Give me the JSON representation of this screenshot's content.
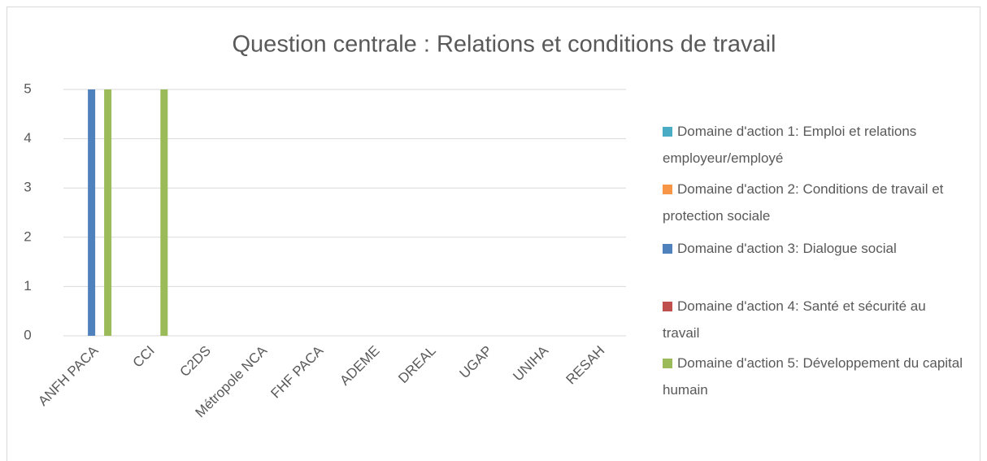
{
  "chart_data": {
    "type": "bar",
    "title": "Question centrale : Relations et conditions de travail",
    "categories": [
      "ANFH PACA",
      "CCI",
      "C2DS",
      "Métropole NCA",
      "FHF PACA",
      "ADEME",
      "DREAL",
      "UGAP",
      "UNIHA",
      "RESAH"
    ],
    "series": [
      {
        "name": "Domaine d'action 1: Emploi et relations employeur/employé",
        "color": "#4bacc6",
        "values": [
          0,
          0,
          0,
          0,
          0,
          0,
          0,
          0,
          0,
          0
        ]
      },
      {
        "name": "Domaine d'action 2: Conditions de travail et protection sociale",
        "color": "#f79646",
        "values": [
          0,
          0,
          0,
          0,
          0,
          0,
          0,
          0,
          0,
          0
        ]
      },
      {
        "name": "Domaine d'action 3: Dialogue social",
        "color": "#4f81bd",
        "values": [
          5,
          0,
          0,
          0,
          0,
          0,
          0,
          0,
          0,
          0
        ]
      },
      {
        "name": "Domaine d'action 4: Santé et sécurité au travail",
        "color": "#c0504d",
        "values": [
          0,
          0,
          0,
          0,
          0,
          0,
          0,
          0,
          0,
          0
        ]
      },
      {
        "name": "Domaine d'action 5: Développement du capital humain",
        "color": "#9bbb59",
        "values": [
          5,
          5,
          0,
          0,
          0,
          0,
          0,
          0,
          0,
          0
        ]
      }
    ],
    "ylim": [
      0,
      5
    ],
    "yticks": [
      0,
      1,
      2,
      3,
      4,
      5
    ],
    "grid": true,
    "legend": "right"
  }
}
